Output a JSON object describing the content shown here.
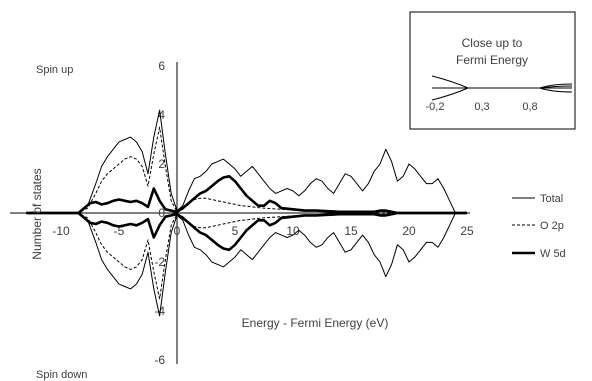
{
  "chart_data": [
    {
      "type": "line",
      "xlabel": "Energy - Fermi Energy (eV)",
      "ylabel": "Number of states",
      "xlim": [
        -13,
        25
      ],
      "ylim": [
        -6,
        6
      ],
      "x_ticks": [
        -10,
        -5,
        0,
        5,
        10,
        15,
        20,
        25
      ],
      "x_tick_labels": [
        "-10",
        "-5",
        "0",
        "5",
        "10",
        "15",
        "20",
        "25"
      ],
      "y_ticks": [
        6,
        4,
        2,
        0,
        -2,
        -4,
        -6
      ],
      "y_tick_labels": [
        "6",
        "4",
        "2",
        "0",
        "-2",
        "-4",
        "-6"
      ],
      "grid": false,
      "legend": "right",
      "annotations": {
        "top": "Spin up",
        "bottom": "Spin down"
      },
      "mirror_spin_down": true,
      "series": [
        {
          "name": "Total",
          "style": "thin",
          "color": "#000000",
          "x": [
            -13,
            -8.5,
            -7.7,
            -7.0,
            -6.5,
            -6.0,
            -5.5,
            -5.0,
            -4.5,
            -4.0,
            -3.5,
            -3.0,
            -2.5,
            -2.0,
            -1.5,
            -1.0,
            -0.5,
            0.0,
            0.5,
            1.0,
            1.5,
            2.0,
            2.5,
            3.0,
            3.5,
            4.0,
            4.5,
            5.0,
            5.5,
            6.0,
            6.5,
            7.0,
            7.5,
            8.0,
            8.5,
            9.0,
            9.5,
            10.0,
            10.5,
            11.0,
            11.5,
            12.0,
            12.5,
            13.0,
            13.5,
            14.0,
            14.5,
            15.0,
            15.5,
            16.0,
            16.5,
            17.0,
            17.5,
            18.0,
            18.5,
            19.0,
            19.5,
            20.0,
            20.5,
            21.0,
            21.5,
            22.0,
            22.5,
            23.0,
            23.5,
            24.0,
            25.0
          ],
          "y": [
            0,
            0,
            0.3,
            1.2,
            1.9,
            2.3,
            2.6,
            2.9,
            3.0,
            3.1,
            2.9,
            2.5,
            1.6,
            3.1,
            4.2,
            2.4,
            0.8,
            0.1,
            0.3,
            0.9,
            1.4,
            1.5,
            1.7,
            2.0,
            2.1,
            2.2,
            2.0,
            1.8,
            1.5,
            1.7,
            1.9,
            1.6,
            1.3,
            1.0,
            0.8,
            0.9,
            1.0,
            0.9,
            0.7,
            0.9,
            1.2,
            1.4,
            1.3,
            1.0,
            0.8,
            1.2,
            1.6,
            1.5,
            1.2,
            0.9,
            1.2,
            1.7,
            2.0,
            2.6,
            2.1,
            1.3,
            1.5,
            2.0,
            1.8,
            1.5,
            1.2,
            1.2,
            1.4,
            1.0,
            0.5,
            0,
            0
          ]
        },
        {
          "name": "O 2p",
          "style": "dashed",
          "color": "#000000",
          "x": [
            -13,
            -8.5,
            -7.7,
            -7.0,
            -6.5,
            -6.0,
            -5.5,
            -5.0,
            -4.5,
            -4.0,
            -3.5,
            -3.0,
            -2.5,
            -2.0,
            -1.5,
            -1.0,
            -0.5,
            0.0,
            0.5,
            1.0,
            1.5,
            2.0,
            2.5,
            3.0,
            3.5,
            4.0,
            4.5,
            5.0,
            5.5,
            6.0,
            6.5,
            7.0,
            8.0,
            9.0,
            10.0,
            12.0,
            14.0,
            16.0,
            18.0,
            19.0,
            25.0
          ],
          "y": [
            0,
            0,
            0.2,
            0.8,
            1.3,
            1.6,
            1.8,
            2.0,
            2.2,
            2.3,
            2.2,
            1.9,
            1.1,
            2.4,
            3.5,
            1.9,
            0.5,
            0.05,
            0.15,
            0.4,
            0.55,
            0.6,
            0.6,
            0.55,
            0.5,
            0.45,
            0.4,
            0.35,
            0.3,
            0.28,
            0.25,
            0.22,
            0.18,
            0.15,
            0.12,
            0.1,
            0.08,
            0.06,
            0.05,
            0,
            0
          ]
        },
        {
          "name": "W 5d",
          "style": "thick",
          "color": "#000000",
          "x": [
            -13,
            -8.5,
            -8.0,
            -7.5,
            -7.0,
            -6.5,
            -6.0,
            -5.5,
            -5.0,
            -4.5,
            -4.0,
            -3.5,
            -3.0,
            -2.5,
            -2.0,
            -1.5,
            -1.0,
            -0.5,
            0.0,
            0.5,
            1.0,
            1.5,
            2.0,
            2.5,
            3.0,
            3.5,
            4.0,
            4.5,
            5.0,
            5.5,
            6.0,
            6.5,
            7.0,
            7.5,
            8.0,
            8.5,
            9.0,
            10.0,
            11.0,
            12.0,
            14.0,
            16.0,
            17.0,
            17.5,
            18.0,
            18.5,
            19.0,
            25.0
          ],
          "y": [
            0,
            0,
            0.2,
            0.4,
            0.45,
            0.35,
            0.4,
            0.5,
            0.55,
            0.5,
            0.45,
            0.5,
            0.4,
            0.25,
            1.0,
            0.5,
            0.15,
            0.1,
            0.05,
            0.2,
            0.4,
            0.6,
            0.8,
            0.9,
            1.1,
            1.3,
            1.45,
            1.5,
            1.3,
            1.0,
            0.7,
            0.5,
            0.3,
            0.3,
            0.5,
            0.4,
            0.2,
            0.15,
            0.1,
            0.1,
            0.05,
            0.05,
            0.05,
            0.1,
            0.1,
            0.05,
            0,
            0
          ]
        }
      ]
    },
    {
      "type": "line",
      "title": "Close up to Fermi Energy",
      "x_tick_labels": [
        "-0,2",
        "0,3",
        "0,8"
      ],
      "grid": false
    }
  ]
}
